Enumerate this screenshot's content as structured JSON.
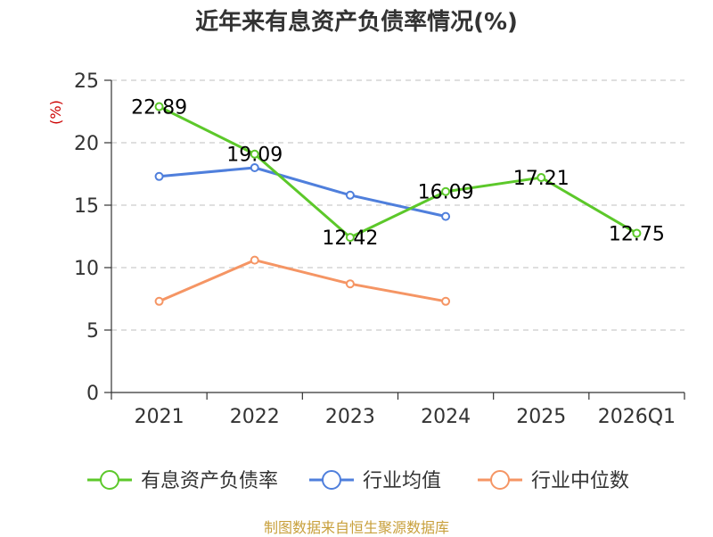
{
  "chart_data": {
    "type": "line",
    "title": "近年来有息资产负债率情况(%)",
    "ylabel": "(%)",
    "categories": [
      "2021",
      "2022",
      "2023",
      "2024",
      "2025",
      "2026Q1"
    ],
    "yticks": [
      "0",
      "5",
      "10",
      "15",
      "20",
      "25"
    ],
    "ylim": [
      0,
      25
    ],
    "grid": true,
    "legend_position": "bottom",
    "series": [
      {
        "name": "有息资产负债率",
        "color": "#5cc82a",
        "values": [
          22.89,
          19.09,
          12.42,
          16.09,
          17.21,
          12.75
        ],
        "labels": [
          "22.89",
          "19.09",
          "12.42",
          "16.09",
          "17.21",
          "12.75"
        ]
      },
      {
        "name": "行业均值",
        "color": "#4f7fdc",
        "values": [
          17.3,
          18.0,
          15.8,
          14.1,
          null,
          null
        ]
      },
      {
        "name": "行业中位数",
        "color": "#f59564",
        "values": [
          7.3,
          10.6,
          8.7,
          7.3,
          null,
          null
        ]
      }
    ]
  },
  "source": "制图数据来自恒生聚源数据库"
}
